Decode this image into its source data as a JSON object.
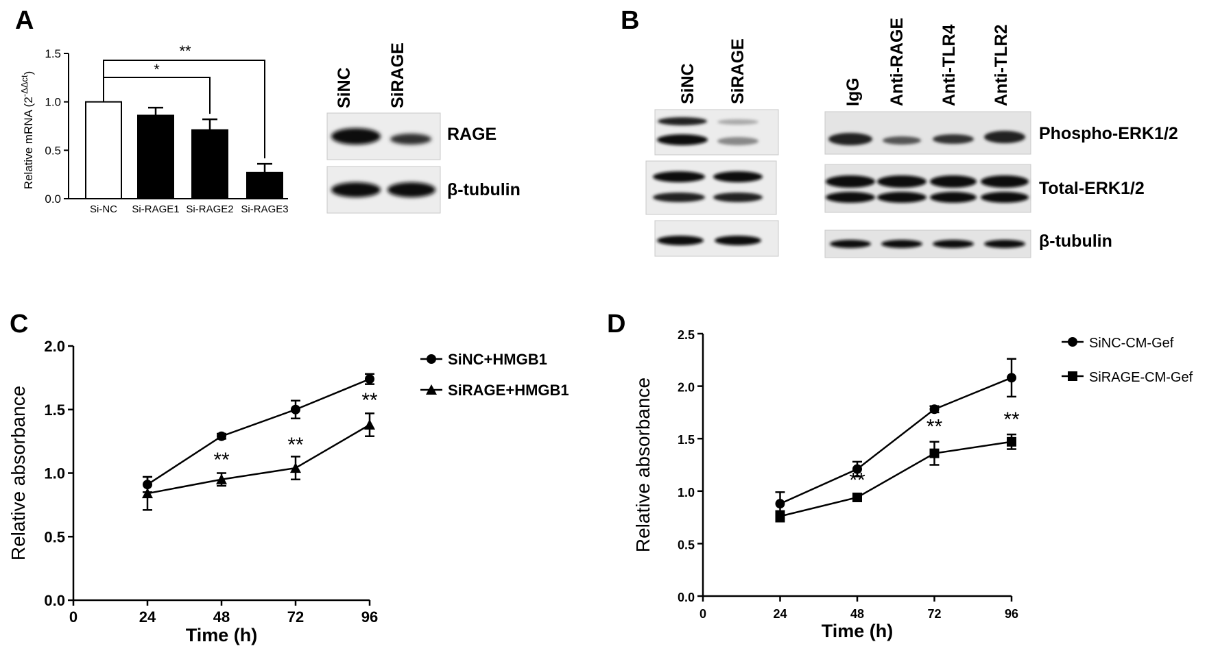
{
  "panel_letters": {
    "a": "A",
    "b": "B",
    "c": "C",
    "d": "D"
  },
  "panel_a": {
    "blot_lanes": [
      "SiNC",
      "SiRAGE"
    ],
    "blot_rows": [
      "RAGE",
      "β-tubulin"
    ]
  },
  "panel_b": {
    "left_lanes": [
      "SiNC",
      "SiRAGE"
    ],
    "right_lanes": [
      "IgG",
      "Anti-RAGE",
      "Anti-TLR4",
      "Anti-TLR2"
    ],
    "row_labels": [
      "Phospho-ERK1/2",
      "Total-ERK1/2",
      "β-tubulin"
    ]
  },
  "chart_data": [
    {
      "panel": "A",
      "type": "bar",
      "ylabel": "Relative mRNA (2^-ΔΔct)",
      "ylabel_main": "Relative mRNA (2",
      "ylabel_sup": "-ΔΔct",
      "ylabel_end": ")",
      "ylim": [
        0,
        1.5
      ],
      "yticks": [
        "0.0",
        "0.5",
        "1.0",
        "1.5"
      ],
      "categories": [
        "Si-NC",
        "Si-RAGE1",
        "Si-RAGE2",
        "Si-RAGE3"
      ],
      "values": [
        1.0,
        0.86,
        0.71,
        0.27
      ],
      "errors": [
        0,
        0.08,
        0.11,
        0.09
      ],
      "fills": [
        "#ffffff",
        "#000000",
        "#000000",
        "#000000"
      ],
      "significance": [
        {
          "from": 0,
          "to": 2,
          "label": "*"
        },
        {
          "from": 0,
          "to": 3,
          "label": "**"
        }
      ]
    },
    {
      "panel": "C",
      "type": "line",
      "xlabel": "Time (h)",
      "ylabel": "Relative absorbance",
      "xlim": [
        0,
        96
      ],
      "ylim": [
        0,
        2.0
      ],
      "xticks": [
        "0",
        "24",
        "48",
        "72",
        "96"
      ],
      "yticks": [
        "0.0",
        "0.5",
        "1.0",
        "1.5",
        "2.0"
      ],
      "x": [
        24,
        48,
        72,
        96
      ],
      "series": [
        {
          "name": "SiNC+HMGB1",
          "marker": "circle",
          "values": [
            0.91,
            1.29,
            1.5,
            1.74
          ],
          "errors": [
            0.06,
            0.02,
            0.07,
            0.04
          ]
        },
        {
          "name": "SiRAGE+HMGB1",
          "marker": "triangle",
          "values": [
            0.84,
            0.95,
            1.04,
            1.38
          ],
          "errors": [
            0.13,
            0.05,
            0.09,
            0.09
          ]
        }
      ],
      "annotations": [
        {
          "x": 48,
          "y": 1.05,
          "text": "**"
        },
        {
          "x": 72,
          "y": 1.17,
          "text": "**"
        },
        {
          "x": 96,
          "y": 1.52,
          "text": "**"
        }
      ],
      "legend": "top-right"
    },
    {
      "panel": "D",
      "type": "line",
      "xlabel": "Time (h)",
      "ylabel": "Relative absorbance",
      "xlim": [
        0,
        96
      ],
      "ylim": [
        0,
        2.5
      ],
      "xticks": [
        "0",
        "24",
        "48",
        "72",
        "96"
      ],
      "yticks": [
        "0.0",
        "0.5",
        "1.0",
        "1.5",
        "2.0",
        "2.5"
      ],
      "x": [
        24,
        48,
        72,
        96
      ],
      "series": [
        {
          "name": "SiNC-CM-Gef",
          "marker": "circle",
          "values": [
            0.88,
            1.21,
            1.78,
            2.08
          ],
          "errors": [
            0.11,
            0.07,
            0.03,
            0.18
          ]
        },
        {
          "name": "SiRAGE-CM-Gef",
          "marker": "square",
          "values": [
            0.76,
            0.94,
            1.36,
            1.47
          ],
          "errors": [
            0.05,
            0.02,
            0.11,
            0.07
          ]
        }
      ],
      "annotations": [
        {
          "x": 48,
          "y": 1.04,
          "text": "**"
        },
        {
          "x": 72,
          "y": 1.55,
          "text": "**"
        },
        {
          "x": 96,
          "y": 1.62,
          "text": "**"
        }
      ],
      "legend": "top-right"
    }
  ]
}
